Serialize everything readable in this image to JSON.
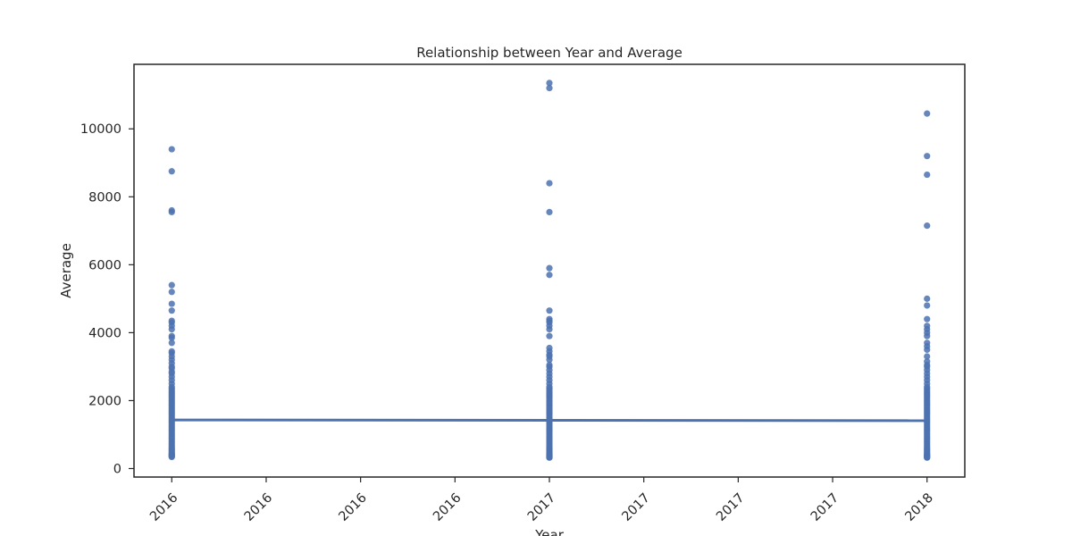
{
  "chart_data": {
    "type": "scatter",
    "title": "Relationship between Year and Average",
    "xlabel": "Year",
    "ylabel": "Average",
    "xlim": [
      2015.9,
      2018.1
    ],
    "ylim": [
      -250,
      11900
    ],
    "x_ticks": [
      2016.0,
      2016.25,
      2016.5,
      2016.75,
      2017.0,
      2017.25,
      2017.5,
      2017.75,
      2018.0
    ],
    "x_tick_labels": [
      "2016",
      "2016",
      "2016",
      "2016",
      "2017",
      "2017",
      "2017",
      "2017",
      "2018"
    ],
    "y_ticks": [
      0,
      2000,
      4000,
      6000,
      8000,
      10000
    ],
    "y_tick_labels": [
      "0",
      "2000",
      "4000",
      "6000",
      "8000",
      "10000"
    ],
    "grid": false,
    "legend": "none",
    "colors": {
      "points": "#4c72b0",
      "line": "#4c72b0",
      "axes": "#262626"
    },
    "series": [
      {
        "x": [
          2016,
          2016,
          2016,
          2016,
          2016,
          2016,
          2016,
          2016,
          2016,
          2016,
          2016,
          2016,
          2016,
          2016,
          2016,
          2016,
          2016,
          2016,
          2016,
          2016,
          2016,
          2016,
          2016,
          2016,
          2016,
          2016,
          2016,
          2016,
          2016,
          2016,
          2016,
          2016,
          2016,
          2016,
          2016,
          2016,
          2016,
          2016,
          2016,
          2016,
          2016,
          2016,
          2016,
          2016,
          2016,
          2016,
          2016,
          2016,
          2016,
          2016,
          2016,
          2016,
          2016,
          2016,
          2016,
          2016,
          2016,
          2016,
          2016,
          2016,
          2016,
          2016,
          2016,
          2016,
          2016,
          2016,
          2016,
          2016,
          2016,
          2016,
          2016,
          2016,
          2016,
          2017,
          2017,
          2017,
          2017,
          2017,
          2017,
          2017,
          2017,
          2017,
          2017,
          2017,
          2017,
          2017,
          2017,
          2017,
          2017,
          2017,
          2017,
          2017,
          2017,
          2017,
          2017,
          2017,
          2017,
          2017,
          2017,
          2017,
          2017,
          2017,
          2017,
          2017,
          2017,
          2017,
          2017,
          2017,
          2017,
          2017,
          2017,
          2017,
          2017,
          2017,
          2017,
          2017,
          2017,
          2017,
          2017,
          2017,
          2017,
          2017,
          2017,
          2017,
          2017,
          2017,
          2017,
          2017,
          2017,
          2017,
          2017,
          2017,
          2017,
          2017,
          2017,
          2017,
          2017,
          2017,
          2017,
          2017,
          2017,
          2017,
          2017,
          2017,
          2017,
          2017,
          2018,
          2018,
          2018,
          2018,
          2018,
          2018,
          2018,
          2018,
          2018,
          2018,
          2018,
          2018,
          2018,
          2018,
          2018,
          2018,
          2018,
          2018,
          2018,
          2018,
          2018,
          2018,
          2018,
          2018,
          2018,
          2018,
          2018,
          2018,
          2018,
          2018,
          2018,
          2018,
          2018,
          2018,
          2018,
          2018,
          2018,
          2018,
          2018,
          2018,
          2018,
          2018,
          2018,
          2018,
          2018,
          2018,
          2018,
          2018,
          2018,
          2018,
          2018,
          2018,
          2018,
          2018,
          2018,
          2018,
          2018,
          2018,
          2018,
          2018,
          2018,
          2018,
          2018,
          2018,
          2018,
          2018,
          2018,
          2018,
          2018,
          2018,
          2018
        ],
        "y": [
          9400,
          8750,
          7600,
          7550,
          5400,
          5200,
          4850,
          4650,
          4350,
          4300,
          4200,
          4100,
          3900,
          3850,
          3700,
          3450,
          3400,
          3300,
          3200,
          3100,
          3000,
          2950,
          2850,
          2800,
          2700,
          2600,
          2500,
          2400,
          2350,
          2300,
          2250,
          2200,
          2150,
          2100,
          2050,
          2000,
          1950,
          1900,
          1850,
          1800,
          1750,
          1700,
          1650,
          1600,
          1550,
          1500,
          1450,
          1400,
          1350,
          1300,
          1250,
          1200,
          1150,
          1100,
          1050,
          1000,
          950,
          900,
          850,
          800,
          750,
          700,
          650,
          600,
          560,
          520,
          480,
          450,
          420,
          400,
          380,
          360,
          340,
          11350,
          11200,
          8400,
          7550,
          5900,
          5700,
          4650,
          4400,
          4350,
          4300,
          4200,
          4100,
          3900,
          3550,
          3450,
          3350,
          3300,
          3200,
          3050,
          3000,
          2900,
          2800,
          2700,
          2600,
          2500,
          2400,
          2350,
          2300,
          2250,
          2200,
          2150,
          2100,
          2050,
          2000,
          1950,
          1900,
          1850,
          1800,
          1750,
          1700,
          1650,
          1600,
          1550,
          1500,
          1450,
          1400,
          1350,
          1300,
          1250,
          1200,
          1150,
          1100,
          1050,
          1000,
          950,
          900,
          850,
          800,
          750,
          700,
          650,
          600,
          560,
          520,
          480,
          450,
          420,
          400,
          380,
          360,
          340,
          330,
          320,
          10450,
          9200,
          8650,
          7150,
          5000,
          4800,
          4400,
          4200,
          4100,
          4000,
          3900,
          3700,
          3600,
          3500,
          3300,
          3150,
          3050,
          3000,
          2900,
          2800,
          2700,
          2600,
          2500,
          2400,
          2350,
          2300,
          2250,
          2200,
          2150,
          2100,
          2050,
          2000,
          1950,
          1900,
          1850,
          1800,
          1750,
          1700,
          1650,
          1600,
          1550,
          1500,
          1450,
          1400,
          1350,
          1300,
          1250,
          1200,
          1150,
          1100,
          1050,
          1000,
          950,
          900,
          850,
          800,
          750,
          700,
          650,
          600,
          560,
          520,
          480,
          450,
          420,
          400,
          380,
          360,
          340,
          330,
          320
        ]
      }
    ],
    "trend_line": {
      "x": [
        2016,
        2018
      ],
      "y": [
        1430,
        1410
      ]
    }
  }
}
